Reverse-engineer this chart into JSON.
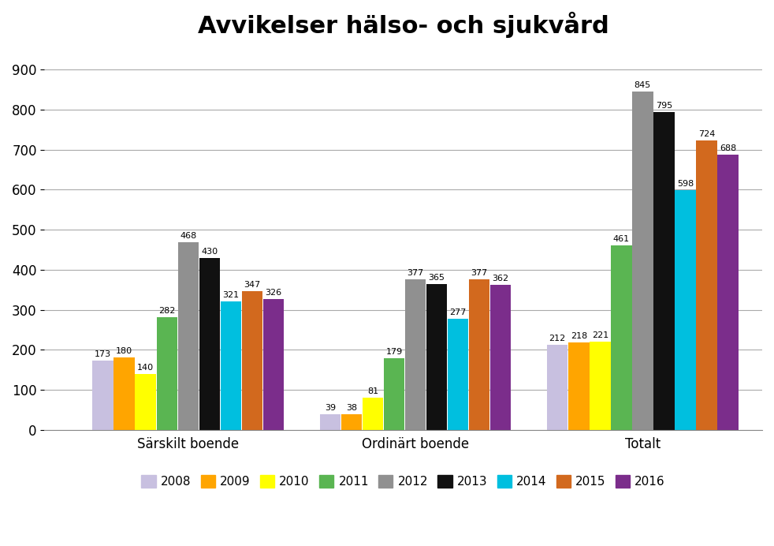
{
  "title": "Avvikelser hälso- och sjukvård",
  "categories": [
    "Särskilt boende",
    "Ordinärt boende",
    "Totalt"
  ],
  "years": [
    "2008",
    "2009",
    "2010",
    "2011",
    "2012",
    "2013",
    "2014",
    "2015",
    "2016"
  ],
  "colors": [
    "#c8c0e0",
    "#ffa500",
    "#ffff00",
    "#5ab552",
    "#909090",
    "#111111",
    "#00bfdf",
    "#d2691e",
    "#7b2d8b"
  ],
  "values": {
    "Särskilt boende": [
      173,
      180,
      140,
      282,
      468,
      430,
      321,
      347,
      326
    ],
    "Ordinärt boende": [
      39,
      38,
      81,
      179,
      377,
      365,
      277,
      377,
      362
    ],
    "Totalt": [
      212,
      218,
      221,
      461,
      845,
      795,
      598,
      724,
      688
    ]
  },
  "ylim": [
    0,
    950
  ],
  "yticks": [
    0,
    100,
    200,
    300,
    400,
    500,
    600,
    700,
    800,
    900
  ],
  "background_color": "#ffffff",
  "grid_color": "#aaaaaa",
  "label_fontsize": 8.0,
  "title_fontsize": 22,
  "tick_fontsize": 12,
  "category_fontsize": 12,
  "legend_fontsize": 11
}
